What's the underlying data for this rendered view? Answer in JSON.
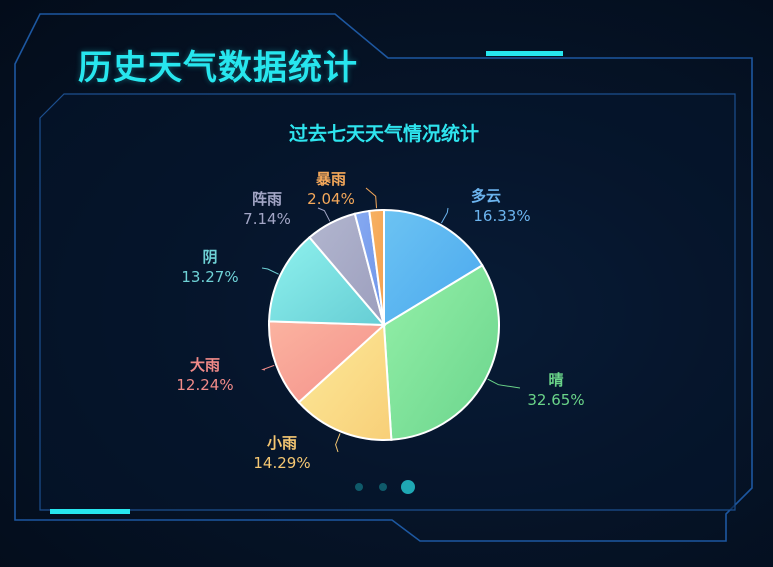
{
  "page": {
    "title": "历史天气数据统计"
  },
  "colors": {
    "accent": "#27e6ee",
    "frame": "#1f5ca8",
    "title": "#27e6ee"
  },
  "carousel": {
    "count": 3,
    "active": 2
  },
  "chart_data": {
    "type": "pie",
    "title": "过去七天天气情况统计",
    "start_angle_deg": 0,
    "direction": "clockwise",
    "slices": [
      {
        "label": "多云",
        "value": 16.33,
        "percent": "16.33%",
        "color": "#6cc3f3",
        "color2": "#4aa8ee",
        "text_color": "#6cb4ee"
      },
      {
        "label": "晴",
        "value": 32.65,
        "percent": "32.65%",
        "color": "#94f0a8",
        "color2": "#6ad48c",
        "text_color": "#6ad489"
      },
      {
        "label": "小雨",
        "value": 14.29,
        "percent": "14.29%",
        "color": "#fcea9a",
        "color2": "#f8cf78",
        "text_color": "#f5c772"
      },
      {
        "label": "大雨",
        "value": 12.24,
        "percent": "12.24%",
        "color": "#fbb3a0",
        "color2": "#f4908a",
        "text_color": "#f08a88"
      },
      {
        "label": "阴",
        "value": 13.27,
        "percent": "13.27%",
        "color": "#8ff2ee",
        "color2": "#66cdd4",
        "text_color": "#6fd2d6"
      },
      {
        "label": "阵雨",
        "value": 7.14,
        "percent": "7.14%",
        "color": "#b2b6cf",
        "color2": "#9c9ebd",
        "text_color": "#a3a6c6"
      },
      {
        "label": "",
        "value": 2.04,
        "percent": "",
        "color": "#86aaf2",
        "color2": "#6f94e8",
        "text_color": "#86aaf2"
      },
      {
        "label": "暴雨",
        "value": 2.04,
        "percent": "2.04%",
        "color": "#f7b262",
        "color2": "#f3a050",
        "text_color": "#f4a85a"
      }
    ]
  }
}
